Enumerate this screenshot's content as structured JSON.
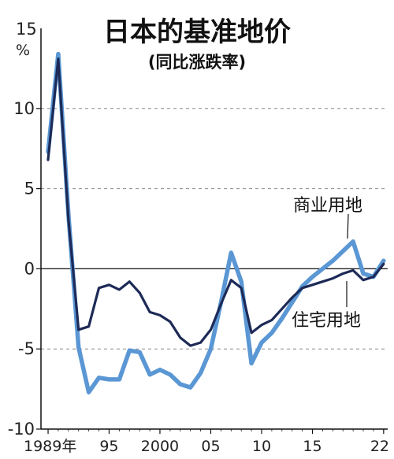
{
  "chart_data": {
    "type": "line",
    "title": "日本的基准地价",
    "subtitle": "(同比涨跌率)",
    "unit_top": "15",
    "unit_symbol": "%",
    "ylim": [
      -10,
      15
    ],
    "yticks": [
      10,
      5,
      0,
      -5,
      -10
    ],
    "ytick_labels": [
      "10",
      "5",
      "0",
      "-5",
      "-10"
    ],
    "grid_lines": [
      10,
      5,
      -5
    ],
    "zero_line": 0,
    "xticks": [
      {
        "x": 1989,
        "label": "1989年"
      },
      {
        "x": 1995,
        "label": "95"
      },
      {
        "x": 2000,
        "label": "2000"
      },
      {
        "x": 2005,
        "label": "05"
      },
      {
        "x": 2010,
        "label": "10"
      },
      {
        "x": 2015,
        "label": "15"
      },
      {
        "x": 2022,
        "label": "22"
      }
    ],
    "x": [
      1989,
      1990,
      1991,
      1992,
      1993,
      1994,
      1995,
      1996,
      1997,
      1998,
      1999,
      2000,
      2001,
      2002,
      2003,
      2004,
      2005,
      2006,
      2007,
      2008,
      2009,
      2010,
      2011,
      2012,
      2013,
      2014,
      2015,
      2016,
      2017,
      2018,
      2019,
      2020,
      2021,
      2022
    ],
    "series": [
      {
        "name": "商业用地",
        "color": "#5a97d4",
        "values": [
          7.3,
          13.4,
          3.4,
          -4.9,
          -7.7,
          -6.8,
          -6.9,
          -6.9,
          -5.1,
          -5.2,
          -6.6,
          -6.3,
          -6.6,
          -7.2,
          -7.4,
          -6.5,
          -5.0,
          -2.1,
          1.0,
          -0.8,
          -5.9,
          -4.6,
          -4.0,
          -3.1,
          -2.1,
          -1.1,
          -0.5,
          0.0,
          0.5,
          1.1,
          1.7,
          -0.3,
          -0.5,
          0.5
        ]
      },
      {
        "name": "住宅用地",
        "color": "#1d2a57",
        "values": [
          6.8,
          13.1,
          3.1,
          -3.8,
          -3.6,
          -1.2,
          -1.0,
          -1.3,
          -0.8,
          -1.5,
          -2.7,
          -2.9,
          -3.3,
          -4.3,
          -4.8,
          -4.6,
          -3.8,
          -2.2,
          -0.7,
          -1.2,
          -4.0,
          -3.5,
          -3.2,
          -2.5,
          -1.8,
          -1.2,
          -1.0,
          -0.8,
          -0.6,
          -0.3,
          -0.1,
          -0.7,
          -0.5,
          0.3
        ]
      }
    ],
    "label_commercial": "商业用地",
    "label_residential": "住宅用地"
  }
}
